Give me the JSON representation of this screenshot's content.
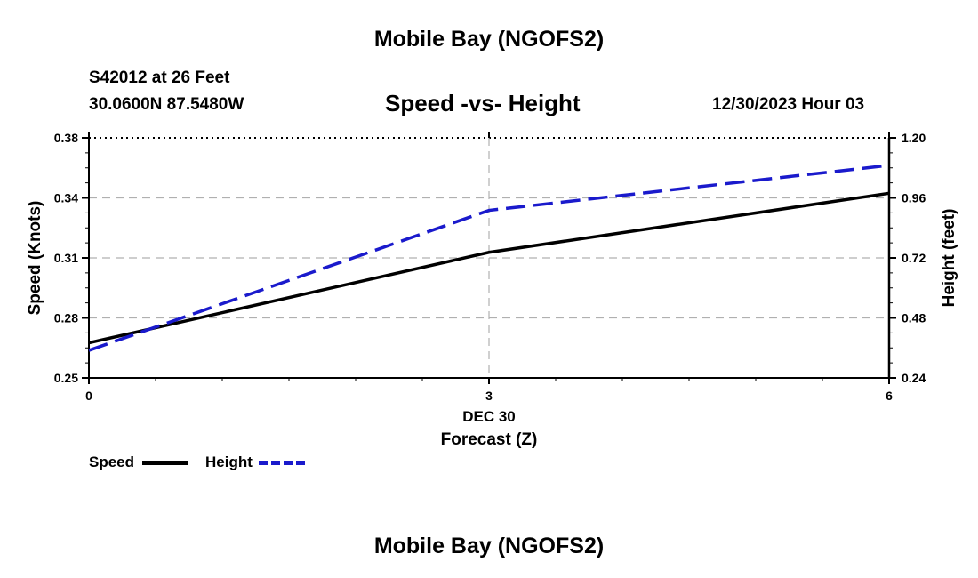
{
  "header": {
    "title": "Mobile Bay (NGOFS2)",
    "station": "S42012 at 26 Feet",
    "coords": "30.0600N  87.5480W",
    "subtitle": "Speed -vs- Height",
    "datetime": "12/30/2023 Hour 03"
  },
  "footer": {
    "title": "Mobile Bay (NGOFS2)"
  },
  "colors": {
    "speed": "#000000",
    "height": "#1a1acc",
    "grid": "#b0b0b0"
  },
  "chart_data": {
    "type": "line",
    "title": "Speed -vs- Height",
    "xlabel": "Forecast (Z)",
    "xlabel_date": "DEC 30",
    "ylabel_left": "Speed (Knots)",
    "ylabel_right": "Height (feet)",
    "x_ticks": [
      "0",
      "3",
      "6"
    ],
    "x_tick_values": [
      0,
      3,
      6
    ],
    "xlim": [
      0,
      6
    ],
    "ylim_left": [
      0.25,
      0.38
    ],
    "ylim_right": [
      0.24,
      1.2
    ],
    "y_ticks_left": [
      "0.25",
      "0.28",
      "0.31",
      "0.34",
      "0.38"
    ],
    "y_tick_values_left": [
      0.25,
      0.28,
      0.31,
      0.34,
      0.38
    ],
    "y_ticks_right": [
      "0.24",
      "0.48",
      "0.72",
      "0.96",
      "1.20"
    ],
    "y_tick_values_right": [
      0.24,
      0.48,
      0.72,
      0.96,
      1.2
    ],
    "series": [
      {
        "name": "Speed",
        "axis": "left",
        "style": "solid",
        "x": [
          0,
          3,
          6
        ],
        "values": [
          0.269,
          0.318,
          0.35
        ]
      },
      {
        "name": "Height",
        "axis": "right",
        "style": "dashed",
        "x": [
          0,
          3,
          6
        ],
        "values": [
          0.35,
          0.91,
          1.09
        ]
      }
    ],
    "legend": [
      "Speed",
      "Height"
    ]
  }
}
